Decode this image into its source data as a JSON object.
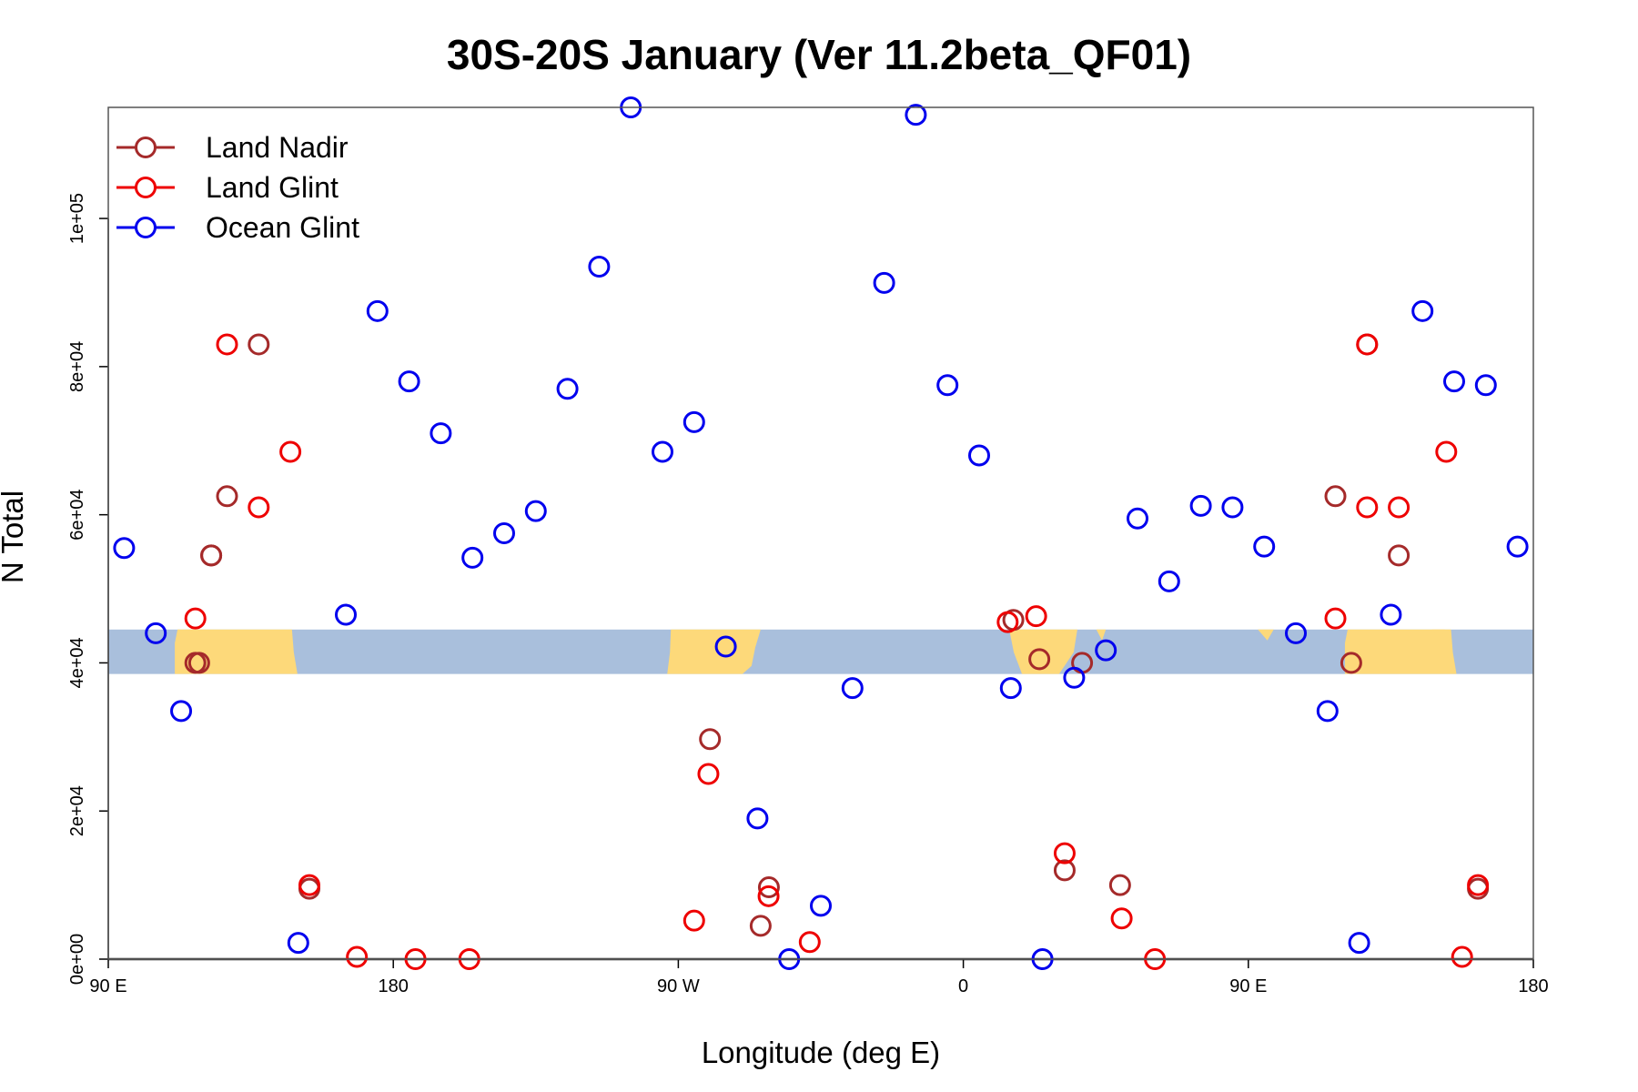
{
  "chart_data": {
    "type": "scatter",
    "title": "30S-20S January (Ver 11.2beta_QF01)",
    "xlabel": "Longitude (deg E)",
    "ylabel": "N Total",
    "xlim": [
      90,
      540
    ],
    "ylim": [
      0,
      115000
    ],
    "x_ticks": [
      {
        "value": 90,
        "label": "90 E"
      },
      {
        "value": 180,
        "label": "180"
      },
      {
        "value": 270,
        "label": "90 W"
      },
      {
        "value": 360,
        "label": "0"
      },
      {
        "value": 450,
        "label": "90 E"
      },
      {
        "value": 540,
        "label": "180"
      }
    ],
    "y_ticks": [
      {
        "value": 0,
        "label": "0e+00"
      },
      {
        "value": 20000,
        "label": "2e+04"
      },
      {
        "value": 40000,
        "label": "4e+04"
      },
      {
        "value": 60000,
        "label": "6e+04"
      },
      {
        "value": 80000,
        "label": "8e+04"
      },
      {
        "value": 100000,
        "label": "1e+05"
      }
    ],
    "legend_position": "top-left",
    "grid": false,
    "map_strip": {
      "y_range": [
        38500,
        44500
      ],
      "ocean_color": "#a9bfdc",
      "land_color": "#fdd97a"
    },
    "series": [
      {
        "name": "Land Nadir",
        "color": "#a52a2a",
        "x": [
          117.5,
          127.5,
          137.5,
          153.5,
          122.5,
          122.5,
          118.7,
          375.8,
          384,
          409.5,
          280,
          298.6,
          296,
          392,
          397.5,
          522.5,
          477.5,
          487.5,
          482.5,
          497.5
        ],
        "y": [
          40000,
          62500,
          83000,
          9500,
          54500,
          54500,
          40000,
          45800,
          40500,
          10000,
          29700,
          9700,
          4500,
          12000,
          40000,
          9500,
          62500,
          83000,
          40000,
          54500
        ]
      },
      {
        "name": "Land Glint",
        "color": "#ee0000",
        "x": [
          117.5,
          127.5,
          137.5,
          147.5,
          153.5,
          168.5,
          187,
          204,
          275,
          279.5,
          298.5,
          311.5,
          374,
          383,
          392,
          410,
          420.5,
          477.5,
          487.5,
          497.5,
          512.5,
          517.5,
          522.5,
          487.5
        ],
        "y": [
          46000,
          83000,
          61000,
          68500,
          10000,
          300,
          0,
          0,
          5200,
          25000,
          8500,
          2300,
          45500,
          46300,
          14300,
          5500,
          0,
          46000,
          83000,
          61000,
          68500,
          300,
          10000,
          61000
        ]
      },
      {
        "name": "Ocean Glint",
        "color": "#0000ee",
        "x": [
          95,
          105,
          113,
          150,
          165,
          175,
          185,
          195,
          205,
          215,
          225,
          235,
          245,
          255,
          265,
          275,
          285,
          295,
          305,
          315,
          325,
          335,
          345,
          355,
          365,
          375,
          385,
          395,
          405,
          415,
          425,
          435,
          445,
          455,
          465,
          475,
          485,
          495,
          505,
          515,
          525,
          535
        ],
        "y": [
          55500,
          44000,
          33500,
          2200,
          46500,
          87500,
          78000,
          71000,
          54200,
          57500,
          60500,
          77000,
          93500,
          115000,
          68500,
          72500,
          42200,
          19000,
          0,
          7200,
          36600,
          91300,
          114000,
          77500,
          68000,
          36600,
          0,
          38000,
          41700,
          59500,
          51000,
          61200,
          61000,
          55700,
          44000,
          33500,
          2200,
          46500,
          87500,
          78000,
          77500,
          55700
        ]
      }
    ]
  }
}
